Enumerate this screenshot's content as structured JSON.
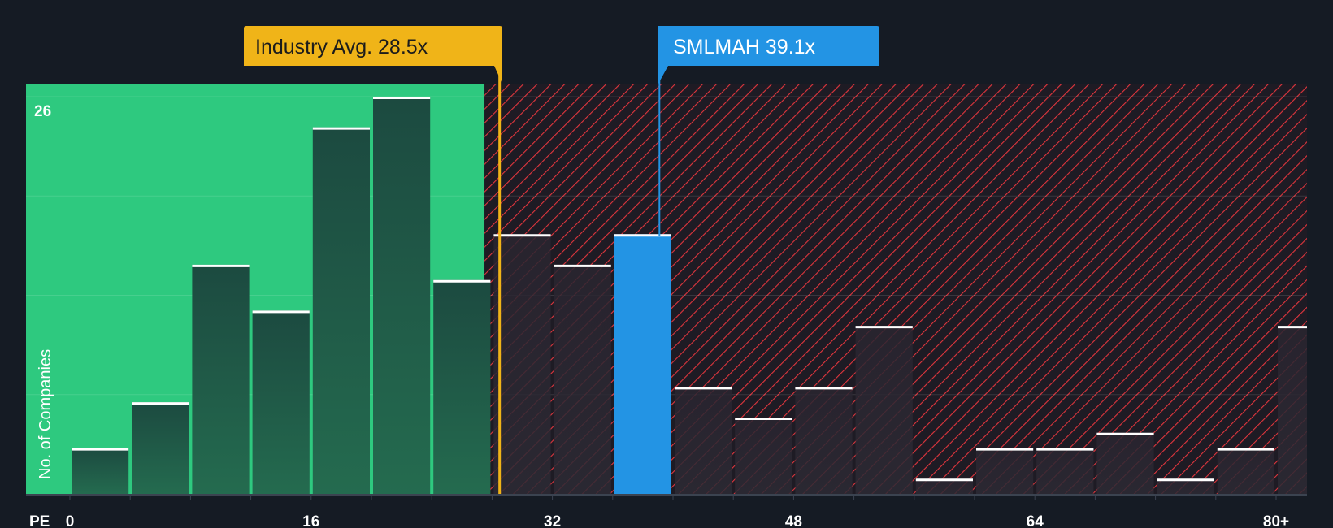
{
  "chart_data": {
    "type": "bar",
    "title": "",
    "xlabel": "PE",
    "ylabel": "No. of Companies",
    "x_tick_labels": [
      "0",
      "16",
      "32",
      "48",
      "64",
      "80+"
    ],
    "x_tick_values": [
      0,
      16,
      32,
      48,
      64,
      80
    ],
    "y_tick_label": "26",
    "ylim": [
      0,
      26.8
    ],
    "bin_width": 4,
    "bins": [
      {
        "start": 0,
        "value": 3
      },
      {
        "start": 4,
        "value": 6
      },
      {
        "start": 8,
        "value": 15
      },
      {
        "start": 12,
        "value": 12
      },
      {
        "start": 16,
        "value": 24
      },
      {
        "start": 20,
        "value": 26
      },
      {
        "start": 24,
        "value": 14
      },
      {
        "start": 28,
        "value": 17
      },
      {
        "start": 32,
        "value": 15
      },
      {
        "start": 36,
        "value": 17
      },
      {
        "start": 40,
        "value": 7
      },
      {
        "start": 44,
        "value": 5
      },
      {
        "start": 48,
        "value": 7
      },
      {
        "start": 52,
        "value": 11
      },
      {
        "start": 56,
        "value": 1
      },
      {
        "start": 60,
        "value": 3
      },
      {
        "start": 64,
        "value": 3
      },
      {
        "start": 68,
        "value": 4
      },
      {
        "start": 72,
        "value": 1
      },
      {
        "start": 76,
        "value": 3
      },
      {
        "start": 80,
        "value": 11
      }
    ],
    "highlight_bin_start": 36,
    "fair_range_end": 27.5,
    "industry_avg": {
      "label": "Industry Avg. 28.5x",
      "value": 28.5
    },
    "company": {
      "label": "SMLMAH 39.1x",
      "value": 39.1
    },
    "colors": {
      "background": "#151b24",
      "fair_zone": "#2ec97f",
      "bar_fair": "#1d4a3e",
      "bar_over": "#2a2730",
      "highlight": "#2394e4",
      "hatch": "#e0353d",
      "hatch_bg": "#1e1b24",
      "industry_callout": "#f0b418",
      "company_callout": "#2394e4",
      "cap": "#ffffff"
    }
  }
}
